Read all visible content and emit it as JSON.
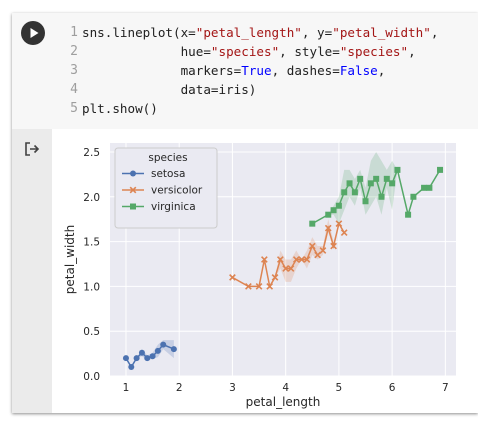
{
  "cell": {
    "line_numbers": [
      "1",
      "2",
      "3",
      "4",
      "5"
    ],
    "code_lines": [
      [
        {
          "t": "sns.lineplot(x="
        },
        {
          "t": "\"petal_length\"",
          "c": "str"
        },
        {
          "t": ", y="
        },
        {
          "t": "\"petal_width\"",
          "c": "str"
        },
        {
          "t": ","
        }
      ],
      [
        {
          "t": "             hue="
        },
        {
          "t": "\"species\"",
          "c": "str"
        },
        {
          "t": ", style="
        },
        {
          "t": "\"species\"",
          "c": "str"
        },
        {
          "t": ","
        }
      ],
      [
        {
          "t": "             markers="
        },
        {
          "t": "True",
          "c": "kw"
        },
        {
          "t": ", dashes="
        },
        {
          "t": "False",
          "c": "kw"
        },
        {
          "t": ","
        }
      ],
      [
        {
          "t": "             data=iris)"
        }
      ],
      [
        {
          "t": "plt.show()"
        }
      ]
    ],
    "run_icon": "play-icon",
    "output_icon": "output-arrow-icon"
  },
  "chart_data": {
    "type": "line",
    "xlabel": "petal_length",
    "ylabel": "petal_width",
    "xlim": [
      0.7,
      7.2
    ],
    "ylim": [
      0.0,
      2.6
    ],
    "xticks": [
      1,
      2,
      3,
      4,
      5,
      6,
      7
    ],
    "yticks": [
      0.0,
      0.5,
      1.0,
      1.5,
      2.0,
      2.5
    ],
    "grid": true,
    "legend_title": "species",
    "legend_position": "upper-left",
    "background": "#eaeaf2",
    "series": [
      {
        "name": "setosa",
        "color": "#4c72b0",
        "marker": "circle",
        "x": [
          1.0,
          1.1,
          1.2,
          1.3,
          1.4,
          1.5,
          1.6,
          1.7,
          1.9
        ],
        "y": [
          0.2,
          0.1,
          0.2,
          0.26,
          0.2,
          0.22,
          0.28,
          0.35,
          0.3
        ],
        "band_lo": [
          0.2,
          0.1,
          0.2,
          0.22,
          0.18,
          0.19,
          0.21,
          0.3,
          0.2
        ],
        "band_hi": [
          0.2,
          0.1,
          0.2,
          0.3,
          0.23,
          0.26,
          0.35,
          0.4,
          0.4
        ]
      },
      {
        "name": "versicolor",
        "color": "#dd8452",
        "marker": "x",
        "x": [
          3.0,
          3.3,
          3.5,
          3.6,
          3.7,
          3.8,
          3.9,
          4.0,
          4.1,
          4.2,
          4.3,
          4.4,
          4.5,
          4.6,
          4.7,
          4.8,
          4.9,
          5.0,
          5.1
        ],
        "y": [
          1.1,
          1.0,
          1.0,
          1.3,
          1.0,
          1.1,
          1.3,
          1.2,
          1.2,
          1.3,
          1.3,
          1.3,
          1.45,
          1.35,
          1.4,
          1.65,
          1.45,
          1.7,
          1.6
        ],
        "band_lo": [
          1.1,
          1.0,
          1.0,
          1.3,
          1.0,
          1.1,
          1.2,
          1.05,
          1.05,
          1.2,
          1.3,
          1.2,
          1.35,
          1.3,
          1.35,
          1.6,
          1.45,
          1.7,
          1.6
        ],
        "band_hi": [
          1.1,
          1.0,
          1.0,
          1.3,
          1.0,
          1.1,
          1.4,
          1.3,
          1.3,
          1.4,
          1.3,
          1.4,
          1.55,
          1.45,
          1.45,
          1.75,
          1.5,
          1.7,
          1.6
        ]
      },
      {
        "name": "virginica",
        "color": "#55a868",
        "marker": "square",
        "x": [
          4.5,
          4.8,
          4.9,
          5.0,
          5.1,
          5.2,
          5.3,
          5.4,
          5.5,
          5.6,
          5.7,
          5.8,
          5.9,
          6.0,
          6.1,
          6.3,
          6.4,
          6.6,
          6.7,
          6.9
        ],
        "y": [
          1.7,
          1.8,
          1.85,
          1.9,
          2.05,
          2.15,
          2.05,
          2.2,
          1.95,
          2.15,
          2.2,
          2.0,
          2.2,
          2.15,
          2.3,
          1.8,
          2.0,
          2.1,
          2.1,
          2.3
        ],
        "band_lo": [
          1.7,
          1.8,
          1.8,
          1.7,
          1.85,
          2.0,
          1.9,
          2.1,
          1.8,
          1.9,
          2.0,
          1.8,
          2.1,
          1.85,
          2.3,
          1.8,
          2.0,
          2.1,
          2.1,
          2.3
        ],
        "band_hi": [
          1.7,
          1.8,
          1.9,
          2.0,
          2.3,
          2.3,
          2.2,
          2.3,
          2.1,
          2.4,
          2.5,
          2.4,
          2.3,
          2.4,
          2.3,
          1.8,
          2.0,
          2.1,
          2.1,
          2.3
        ]
      }
    ]
  }
}
